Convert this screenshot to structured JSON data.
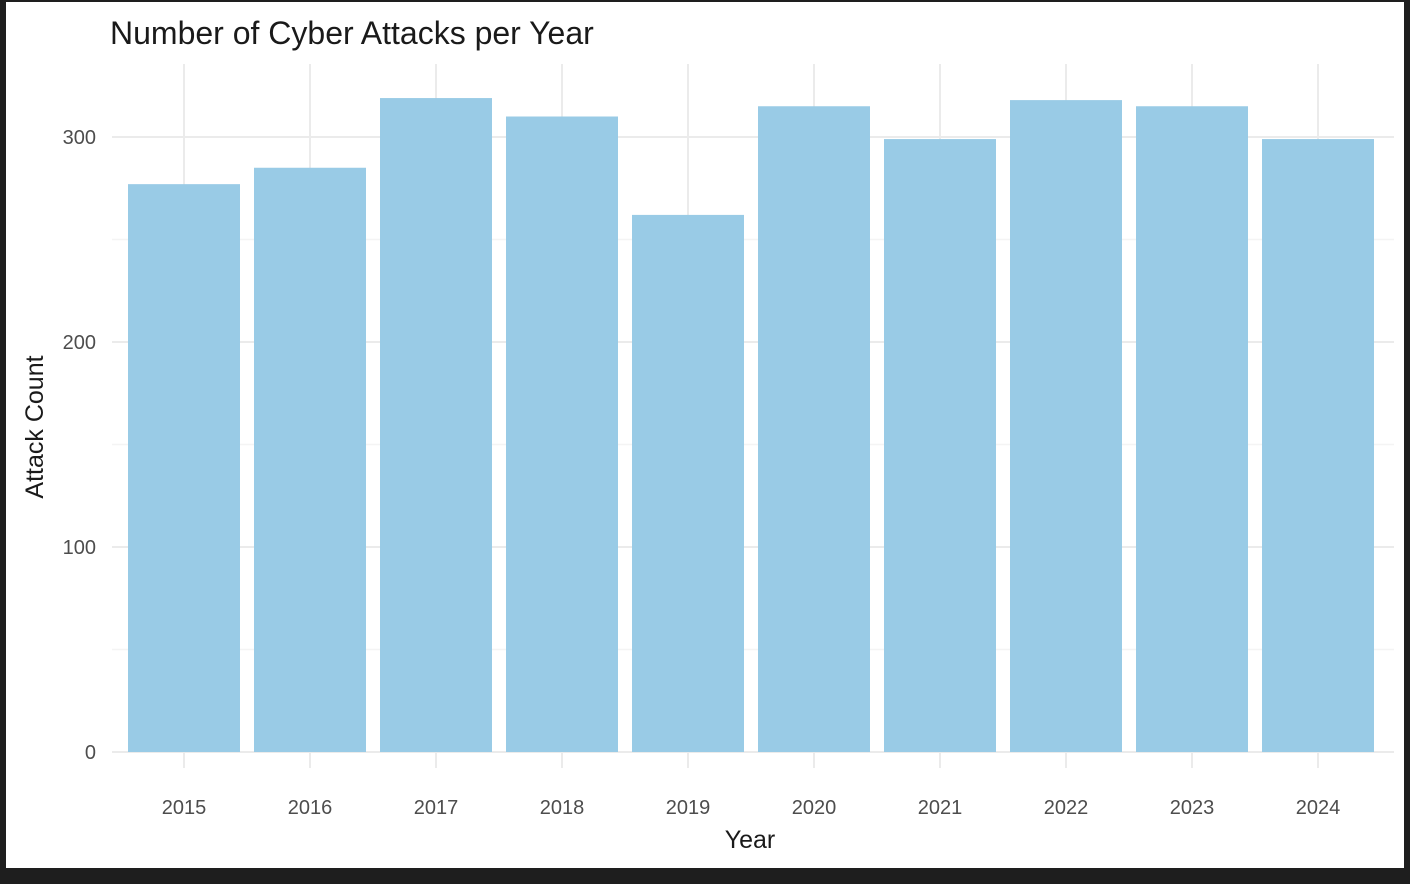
{
  "colors": {
    "bar": "#99cbe6",
    "grid_major": "#ebebeb",
    "grid_minor": "#f4f4f4",
    "background": "#ffffff",
    "frame": "#1e1e1e"
  },
  "chart_data": {
    "type": "bar",
    "title": "Number of Cyber Attacks per Year",
    "xlabel": "Year",
    "ylabel": "Attack Count",
    "categories": [
      "2015",
      "2016",
      "2017",
      "2018",
      "2019",
      "2020",
      "2021",
      "2022",
      "2023",
      "2024"
    ],
    "values": [
      277,
      285,
      319,
      310,
      262,
      315,
      299,
      318,
      315,
      299
    ],
    "ylim": [
      0,
      330
    ],
    "yticks": [
      0,
      100,
      200,
      300
    ],
    "ytick_labels": [
      "0",
      "100",
      "200",
      "300"
    ],
    "grid": true,
    "legend": "none"
  }
}
